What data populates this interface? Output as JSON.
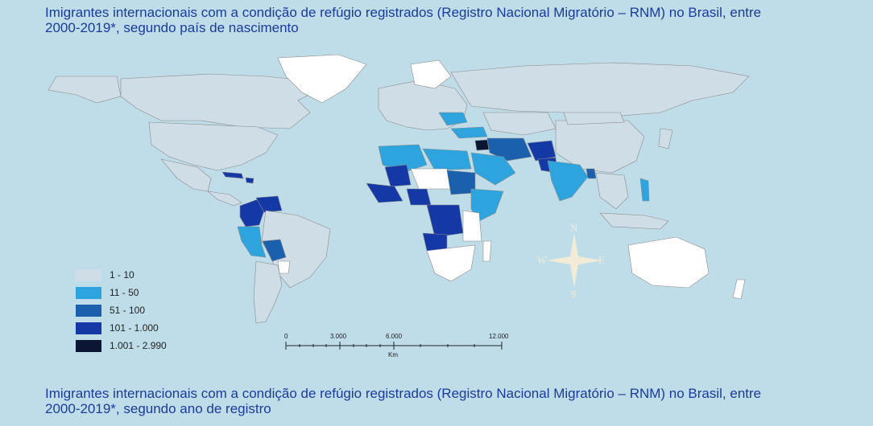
{
  "titles": {
    "top": "Imigrantes internacionais com a condição de refúgio registrados (Registro Nacional Migratório – RNM) no Brasil, entre 2000-2019*, segundo país de nascimento",
    "bottom": "Imigrantes internacionais com a condição de refúgio registrados (Registro Nacional Migratório – RNM) no Brasil, entre 2000-2019*, segundo ano de registro"
  },
  "legend": [
    {
      "label": "1 - 10",
      "color": "#cfdde6"
    },
    {
      "label": "11 - 50",
      "color": "#2ea4de"
    },
    {
      "label": "51 - 100",
      "color": "#1a60ad"
    },
    {
      "label": "101 - 1.000",
      "color": "#1438a6"
    },
    {
      "label": "1.001 - 2.990",
      "color": "#0b1632"
    }
  ],
  "scale_bar": {
    "ticks": [
      "0",
      "3.000",
      "6.000",
      "12.000"
    ],
    "unit": "Km"
  },
  "compass": {
    "n": "N",
    "s": "S",
    "e": "E",
    "w": "W"
  },
  "colors": {
    "ocean": "#bfdde9",
    "no_data": "#ffffff",
    "title": "#1a3a9c",
    "border": "#8a8a8a"
  }
}
